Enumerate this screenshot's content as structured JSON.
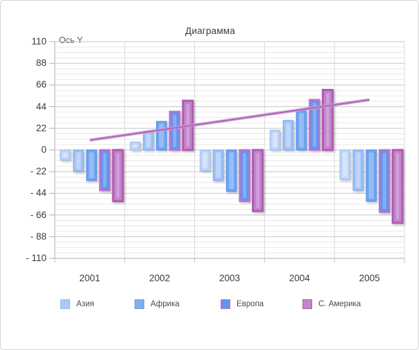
{
  "chart_data": {
    "type": "bar",
    "title": "Диаграмма",
    "y_axis_title": "Ось Y",
    "categories": [
      "2001",
      "2002",
      "2003",
      "2004",
      "2005"
    ],
    "y_ticks": [
      "110",
      "88",
      "66",
      "44",
      "22",
      "0",
      "- 22",
      "- 44",
      "- 66",
      "- 88",
      "- 110"
    ],
    "ylim": [
      -110,
      110
    ],
    "y_major_step": 22,
    "y_minor_step": 5.5,
    "grid": true,
    "legend_position": "bottom",
    "series": [
      {
        "name": "",
        "in_legend": false,
        "values": [
          -10,
          8,
          -21,
          20,
          -30
        ],
        "fill": "#BCD4F8",
        "stroke": "#A9C7F3",
        "inner": "#D7E5FC",
        "stroke_width": 1.5
      },
      {
        "name": "Азия",
        "in_legend": true,
        "values": [
          -22,
          19,
          -31,
          30,
          -41
        ],
        "fill": "#9FC0F6",
        "stroke": "#8AB3F2",
        "inner": "#BDD6FA",
        "stroke_width": 1.5
      },
      {
        "name": "Африка",
        "in_legend": true,
        "values": [
          -31,
          29,
          -42,
          40,
          -52
        ],
        "fill": "#6FA3F1",
        "stroke": "#5D97EE",
        "inner": "#93BDF6",
        "stroke_width": 1.5
      },
      {
        "name": "Европа",
        "in_legend": true,
        "values": [
          -41,
          39,
          -52,
          51,
          -63
        ],
        "fill": "#5D97EE",
        "stroke": "#C86ECB",
        "inner": "#83AFF4",
        "stroke_width": 2.5
      },
      {
        "name": "С. Америка",
        "in_legend": true,
        "values": [
          -52,
          50,
          -62,
          61,
          -74
        ],
        "fill": "#C285CB",
        "stroke": "#B25AAE",
        "inner": "#D0A1DA",
        "stroke_width": 3
      }
    ],
    "trendline": {
      "start_value": 10,
      "end_value": 51,
      "color": "#AF64BA",
      "edge_color": "#CD9AD6"
    },
    "legend": [
      {
        "label": "Азия",
        "fill": "#A9C9F6",
        "stroke": "#94BAF3"
      },
      {
        "label": "Африка",
        "fill": "#7FAFF3",
        "stroke": "#699FF0"
      },
      {
        "label": "Европа",
        "fill": "#5D97EE",
        "stroke": "#C86ECB"
      },
      {
        "label": "С. Америка",
        "fill": "#C287CB",
        "stroke": "#B058AC"
      }
    ],
    "colors": {
      "grid_major": "#C6C6C6",
      "grid_minor": "#E7E7E7",
      "grid_vertical": "#D8D8D8",
      "axis_line": "#A9AFB5",
      "x_tick_mark": "#B4C6DE"
    }
  }
}
